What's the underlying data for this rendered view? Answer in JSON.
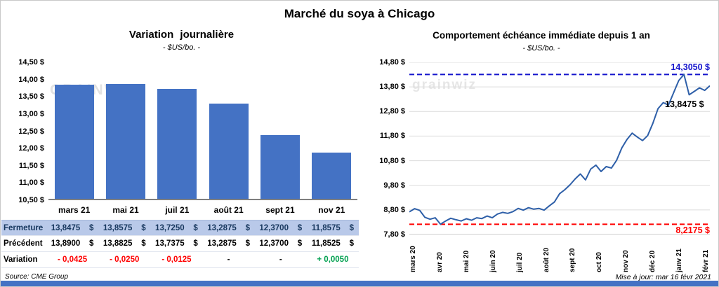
{
  "page_title": "Marché du soya à Chicago",
  "watermarks": {
    "left": "GRAINWIZ",
    "right": "grainwiz"
  },
  "footer": {
    "source": "Source: CME Group",
    "updated": "Mise à jour: mar 16 févr 2021"
  },
  "colors": {
    "bar_blue": "#4472C4",
    "line_blue": "#2E5FA8",
    "max_line_blue": "#1414CC",
    "min_line_red": "#FF0000",
    "variation_negative": "#FF0000",
    "variation_positive": "#00A050",
    "fermeture_row_bg": "#B9C9E9",
    "fermeture_row_text": "#17375E",
    "bottom_bar": "#4472C4"
  },
  "table": {
    "rows": [
      {
        "label": "Fermeture",
        "values": [
          "13,8475    $",
          "13,8575    $",
          "13,7250    $",
          "13,2875    $",
          "12,3700    $",
          "11,8575    $"
        ],
        "value_colors": [
          "#17375E",
          "#17375E",
          "#17375E",
          "#17375E",
          "#17375E",
          "#17375E"
        ]
      },
      {
        "label": "Précédent",
        "values": [
          "13,8900    $",
          "13,8825    $",
          "13,7375    $",
          "13,2875    $",
          "12,3700    $",
          "11,8525    $"
        ],
        "value_colors": [
          "#000000",
          "#000000",
          "#000000",
          "#000000",
          "#000000",
          "#000000"
        ]
      },
      {
        "label": "Variation",
        "values": [
          "- 0,0425",
          "- 0,0250",
          "- 0,0125",
          "-",
          "-",
          "+ 0,0050"
        ],
        "value_colors": [
          "#FF0000",
          "#FF0000",
          "#FF0000",
          "#000000",
          "#000000",
          "#00A050"
        ]
      }
    ]
  },
  "chart_data": [
    {
      "type": "bar",
      "title": "Variation journalière",
      "subtitle": "- $US/bo. -",
      "categories": [
        "mars 21",
        "mai 21",
        "juil 21",
        "août 21",
        "sept 21",
        "nov 21"
      ],
      "values": [
        13.8475,
        13.8575,
        13.725,
        13.2875,
        12.37,
        11.8575
      ],
      "ylim": [
        10.5,
        14.5
      ],
      "ytick_labels": [
        "14,50 $",
        "14,00 $",
        "13,50 $",
        "13,00 $",
        "12,50 $",
        "12,00 $",
        "11,50 $",
        "11,00 $",
        "10,50 $"
      ],
      "bar_color": "#4472C4",
      "grid": false,
      "legend": false
    },
    {
      "type": "line",
      "title": "Comportement échéance immédiate depuis 1 an",
      "subtitle": "- $US/bo. -",
      "x_labels": [
        "mars 20",
        "avr 20",
        "mai 20",
        "juin 20",
        "juil 20",
        "août 20",
        "sept 20",
        "oct 20",
        "nov 20",
        "déc 20",
        "janv 21",
        "févr 21"
      ],
      "ylim": [
        7.8,
        14.8
      ],
      "ytick_labels": [
        "14,80 $",
        "13,80 $",
        "12,80 $",
        "11,80 $",
        "10,80 $",
        "9,80 $",
        "8,80 $",
        "7,80 $"
      ],
      "line_color": "#2E5FA8",
      "grid": true,
      "legend": false,
      "max_line": {
        "value": 14.305,
        "label": "14,3050 $",
        "color": "#1414CC"
      },
      "min_line": {
        "value": 8.2175,
        "label": "8,2175 $",
        "color": "#FF0000"
      },
      "last_point": {
        "value": 13.8475,
        "label": "13,8475 $"
      },
      "points": [
        8.72,
        8.85,
        8.78,
        8.5,
        8.42,
        8.48,
        8.2175,
        8.35,
        8.46,
        8.4,
        8.35,
        8.44,
        8.38,
        8.48,
        8.45,
        8.55,
        8.48,
        8.63,
        8.7,
        8.66,
        8.73,
        8.86,
        8.79,
        8.89,
        8.83,
        8.86,
        8.79,
        8.96,
        9.12,
        9.46,
        9.62,
        9.82,
        10.06,
        10.26,
        10.02,
        10.46,
        10.62,
        10.36,
        10.56,
        10.5,
        10.82,
        11.32,
        11.66,
        11.92,
        11.76,
        11.62,
        11.82,
        12.32,
        12.92,
        13.16,
        13.06,
        13.56,
        14.06,
        14.305,
        13.48,
        13.62,
        13.76,
        13.66,
        13.8475
      ]
    }
  ]
}
